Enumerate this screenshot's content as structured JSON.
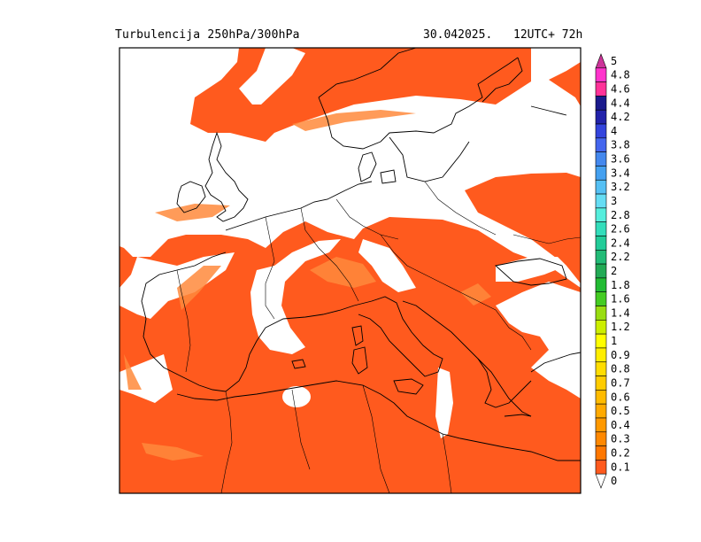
{
  "header": {
    "title": "Turbulencija 250hPa/300hPa",
    "date": "30.042025.",
    "run": "12UTC+ 72h"
  },
  "colors": {
    "fill_main": "#ff5a1e",
    "fill_light": "#ff8a3c",
    "coast": "#000000",
    "frame": "#000000"
  },
  "legend": {
    "levels": [
      {
        "label": "5",
        "color": "#cc3399"
      },
      {
        "label": "4.8",
        "color": "#ff33cc"
      },
      {
        "label": "4.6",
        "color": "#ff3399"
      },
      {
        "label": "4.4",
        "color": "#1a1a8c"
      },
      {
        "label": "4.2",
        "color": "#2222aa"
      },
      {
        "label": "4",
        "color": "#3344dd"
      },
      {
        "label": "3.8",
        "color": "#4466ee"
      },
      {
        "label": "3.6",
        "color": "#4488ee"
      },
      {
        "label": "3.4",
        "color": "#44a0f0"
      },
      {
        "label": "3.2",
        "color": "#55c0f4"
      },
      {
        "label": "3",
        "color": "#66ddf4"
      },
      {
        "label": "2.8",
        "color": "#55eedd"
      },
      {
        "label": "2.6",
        "color": "#33ddbb"
      },
      {
        "label": "2.4",
        "color": "#22cc99"
      },
      {
        "label": "2.2",
        "color": "#22bb77"
      },
      {
        "label": "2",
        "color": "#22aa55"
      },
      {
        "label": "1.8",
        "color": "#22bb33"
      },
      {
        "label": "1.6",
        "color": "#44cc22"
      },
      {
        "label": "1.4",
        "color": "#99dd11"
      },
      {
        "label": "1.2",
        "color": "#ccee00"
      },
      {
        "label": "1",
        "color": "#ffff00"
      },
      {
        "label": "0.9",
        "color": "#ffee00"
      },
      {
        "label": "0.8",
        "color": "#ffdd00"
      },
      {
        "label": "0.7",
        "color": "#ffcc00"
      },
      {
        "label": "0.6",
        "color": "#ffbb00"
      },
      {
        "label": "0.5",
        "color": "#ffaa00"
      },
      {
        "label": "0.4",
        "color": "#ff9900"
      },
      {
        "label": "0.3",
        "color": "#ff8800"
      },
      {
        "label": "0.2",
        "color": "#ff7700"
      },
      {
        "label": "0.1",
        "color": "#ff5a1e"
      },
      {
        "label": "0",
        "color": "#ffffff"
      }
    ]
  }
}
